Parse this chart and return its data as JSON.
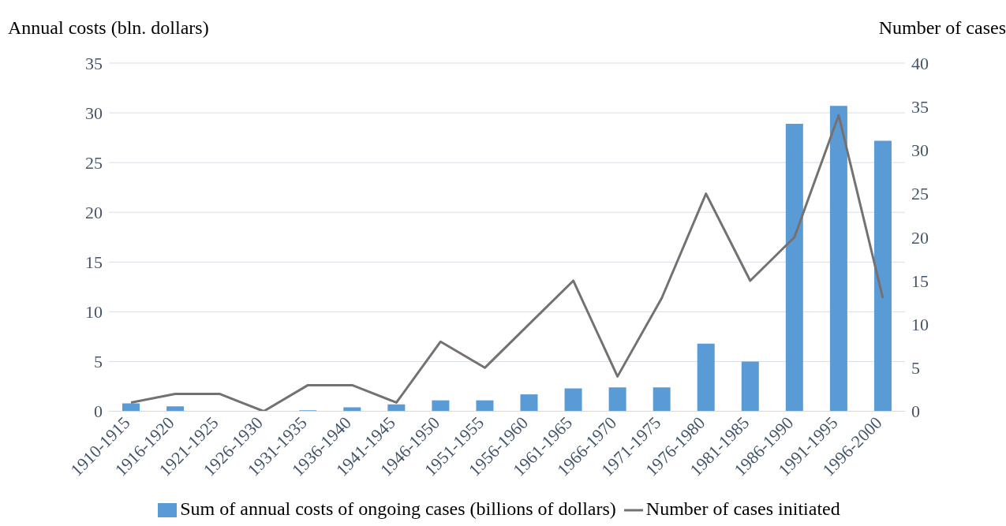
{
  "chart_data": {
    "type": "bar",
    "ylabel": "Annual costs (bln. dollars)",
    "y2label": "Number of cases",
    "categories": [
      "1910-1915",
      "1916-1920",
      "1921-1925",
      "1926-1930",
      "1931-1935",
      "1936-1940",
      "1941-1945",
      "1946-1950",
      "1951-1955",
      "1956-1960",
      "1961-1965",
      "1966-1970",
      "1971-1975",
      "1976-1980",
      "1981-1985",
      "1986-1990",
      "1991-1995",
      "1996-2000"
    ],
    "series": [
      {
        "name": "Sum of annual costs of ongoing cases (billions of dollars)",
        "color": "#5b9bd5",
        "values": [
          0.8,
          0.5,
          0,
          0,
          0.1,
          0.4,
          0.7,
          1.1,
          1.1,
          1.7,
          2.3,
          2.4,
          2.4,
          6.8,
          5.0,
          28.9,
          30.7,
          27.2
        ]
      },
      {
        "name": "Number of cases initiated",
        "type": "line",
        "axis": "y2",
        "color": "#767171",
        "values": [
          1,
          2,
          2,
          0,
          3,
          3,
          1,
          8,
          5,
          10,
          15,
          4,
          13,
          25,
          15,
          20,
          34,
          13
        ]
      }
    ],
    "ylim": [
      0,
      35
    ],
    "yticks": [
      0,
      5,
      10,
      15,
      20,
      25,
      30,
      35
    ],
    "y2lim": [
      0,
      40
    ],
    "y2ticks": [
      0,
      5,
      10,
      15,
      20,
      25,
      30,
      35,
      40
    ],
    "grid": "y",
    "legend": "bottom",
    "marker": "none"
  }
}
